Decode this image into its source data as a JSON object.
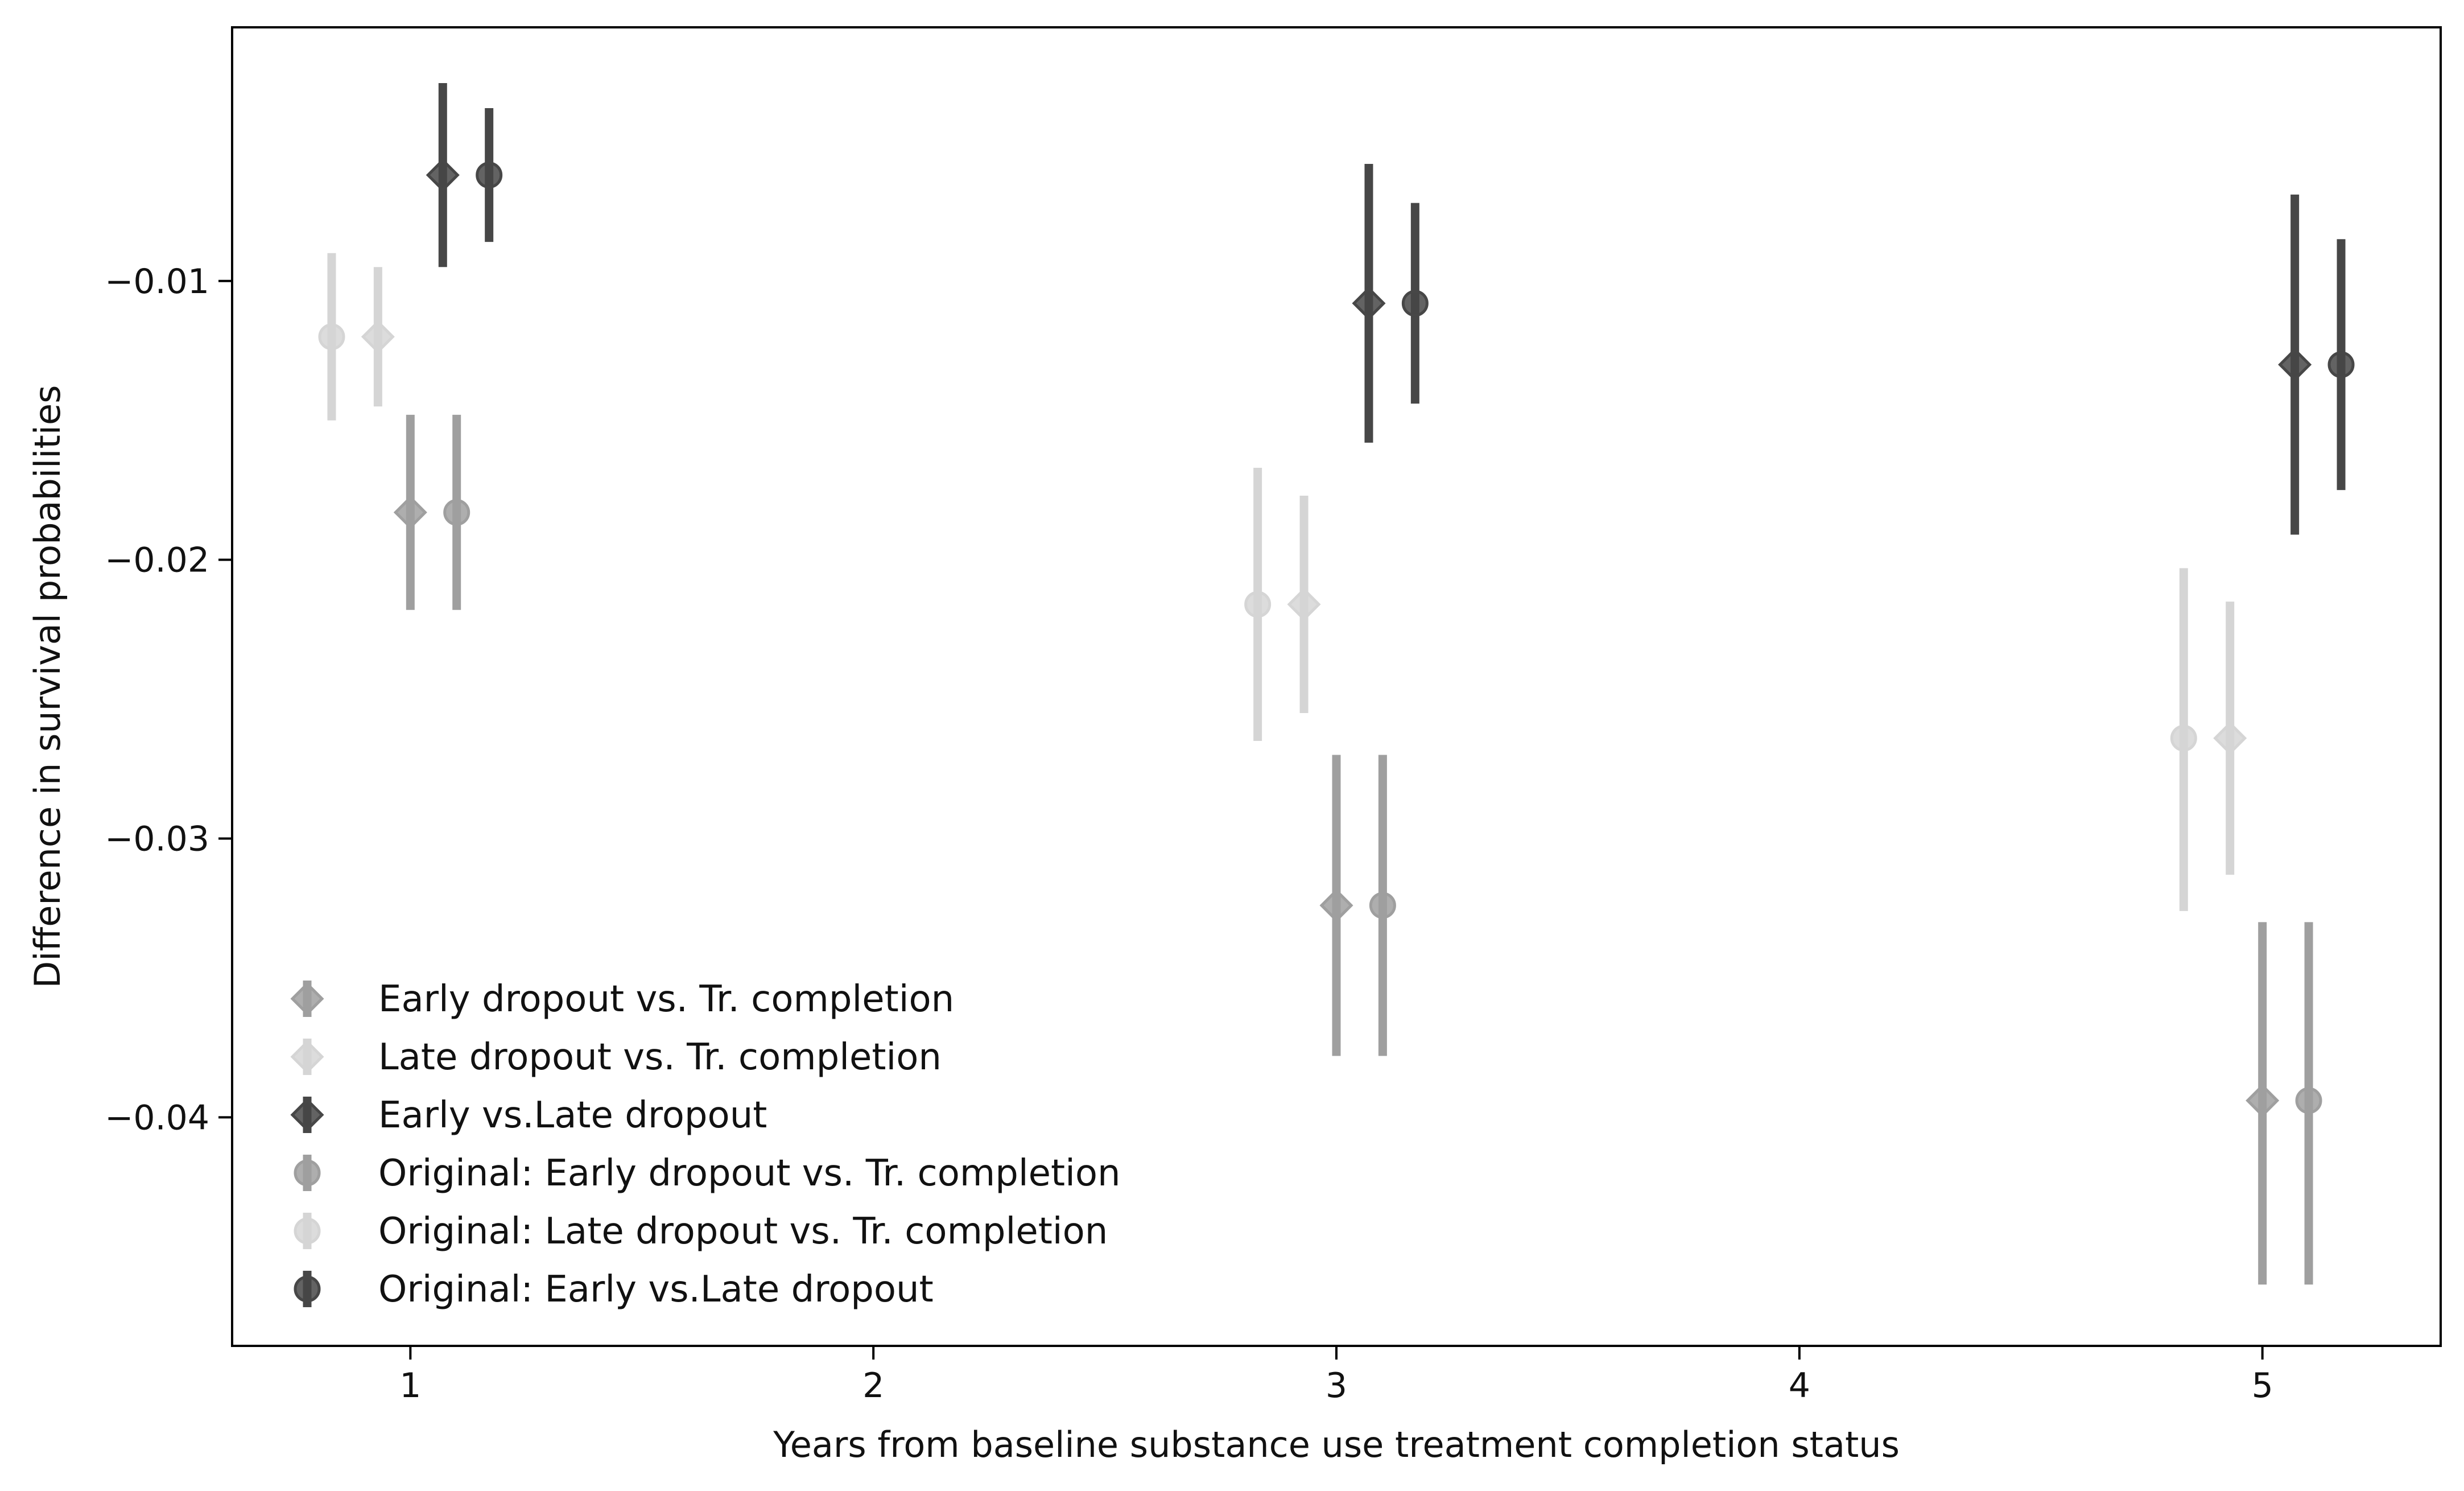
{
  "chart_data": {
    "type": "scatter",
    "xlabel": "Years from baseline substance use treatment completion status",
    "ylabel": "Difference in survival probabilities",
    "xlim": [
      0.615,
      5.385
    ],
    "ylim": [
      -0.0482,
      -0.0009
    ],
    "xticks": [
      1,
      2,
      3,
      4,
      5
    ],
    "yticks": [
      -0.01,
      -0.02,
      -0.03,
      -0.04
    ],
    "ytick_labels": [
      "−0.01",
      "−0.02",
      "−0.03",
      "−0.04"
    ],
    "legend_position": "lower-left",
    "grid": false,
    "series": [
      {
        "name": "Early dropout vs. Tr. completion",
        "marker": "diamond",
        "color": "#808080",
        "alpha": 0.75,
        "points": [
          {
            "x": 1.0,
            "y": -0.0183,
            "lo": -0.0218,
            "hi": -0.0148
          },
          {
            "x": 3.0,
            "y": -0.0324,
            "lo": -0.0378,
            "hi": -0.027
          },
          {
            "x": 5.0,
            "y": -0.0394,
            "lo": -0.046,
            "hi": -0.033
          }
        ]
      },
      {
        "name": "Late dropout vs. Tr. completion",
        "marker": "diamond",
        "color": "#c8c8c8",
        "alpha": 0.75,
        "points": [
          {
            "x": 0.93,
            "y": -0.012,
            "lo": -0.0145,
            "hi": -0.0095
          },
          {
            "x": 2.93,
            "y": -0.0216,
            "lo": -0.0255,
            "hi": -0.0177
          },
          {
            "x": 4.93,
            "y": -0.0264,
            "lo": -0.0313,
            "hi": -0.0215
          }
        ]
      },
      {
        "name": "Early vs.Late dropout",
        "marker": "diamond",
        "color": "#1a1a1a",
        "alpha": 0.8,
        "points": [
          {
            "x": 1.07,
            "y": -0.0062,
            "lo": -0.0095,
            "hi": -0.0029
          },
          {
            "x": 3.07,
            "y": -0.0108,
            "lo": -0.0158,
            "hi": -0.0058
          },
          {
            "x": 5.07,
            "y": -0.013,
            "lo": -0.0191,
            "hi": -0.0069
          }
        ]
      },
      {
        "name": "Original: Early dropout vs. Tr. completion",
        "marker": "circle",
        "color": "#808080",
        "alpha": 0.75,
        "points": [
          {
            "x": 1.1,
            "y": -0.0183,
            "lo": -0.0218,
            "hi": -0.0148
          },
          {
            "x": 3.1,
            "y": -0.0324,
            "lo": -0.0378,
            "hi": -0.027
          },
          {
            "x": 5.1,
            "y": -0.0394,
            "lo": -0.046,
            "hi": -0.033
          }
        ]
      },
      {
        "name": "Original: Late dropout vs. Tr. completion",
        "marker": "circle",
        "color": "#c8c8c8",
        "alpha": 0.75,
        "points": [
          {
            "x": 0.83,
            "y": -0.012,
            "lo": -0.015,
            "hi": -0.009
          },
          {
            "x": 2.83,
            "y": -0.0216,
            "lo": -0.0265,
            "hi": -0.0167
          },
          {
            "x": 4.83,
            "y": -0.0264,
            "lo": -0.0326,
            "hi": -0.0203
          }
        ]
      },
      {
        "name": "Original: Early vs.Late dropout",
        "marker": "circle",
        "color": "#1a1a1a",
        "alpha": 0.8,
        "points": [
          {
            "x": 1.17,
            "y": -0.0062,
            "lo": -0.0086,
            "hi": -0.0038
          },
          {
            "x": 3.17,
            "y": -0.0108,
            "lo": -0.0144,
            "hi": -0.0072
          },
          {
            "x": 5.17,
            "y": -0.013,
            "lo": -0.0175,
            "hi": -0.0085
          }
        ]
      }
    ]
  }
}
